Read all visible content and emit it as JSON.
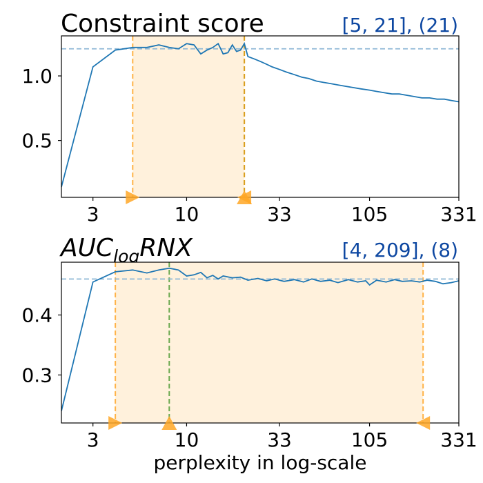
{
  "figure": {
    "xlabel": "perplexity in log-scale"
  },
  "chart_data": [
    {
      "type": "line",
      "title": "Constraint score",
      "range_label": "[5, 21], (21)",
      "x_scale": "log",
      "xlim": [
        2,
        331
      ],
      "ylim": [
        0.06,
        1.31
      ],
      "x_ticks": [
        3,
        10,
        33,
        105,
        331
      ],
      "x_tick_labels": [
        "3",
        "10",
        "33",
        "105",
        "331"
      ],
      "y_ticks": [
        0.5,
        1.0
      ],
      "y_tick_labels": [
        "0.5",
        "1.0"
      ],
      "reference_line_y": 1.21,
      "highlight_range": [
        5,
        21
      ],
      "best_x": 21,
      "colors": {
        "line": "#1f77b4",
        "band": "#fff1dc",
        "band_edge": "#ffb347",
        "best_line": "#d9a020",
        "marker": "#ffa726",
        "reference": "#8fb8d6",
        "range_label": "#0d47a1"
      },
      "series": [
        {
          "x": [
            2,
            3,
            4,
            5,
            6,
            7,
            8,
            9,
            10,
            11,
            12,
            13,
            14,
            15,
            16,
            17,
            18,
            19,
            20,
            21,
            22,
            24,
            26,
            28,
            30,
            33,
            36,
            40,
            44,
            48,
            53,
            58,
            64,
            70,
            77,
            85,
            94,
            105,
            115,
            127,
            140,
            154,
            170,
            187,
            206,
            227,
            250,
            275,
            300,
            331
          ],
          "y": [
            0.14,
            1.07,
            1.2,
            1.22,
            1.22,
            1.24,
            1.22,
            1.21,
            1.25,
            1.24,
            1.17,
            1.2,
            1.22,
            1.25,
            1.17,
            1.18,
            1.24,
            1.19,
            1.2,
            1.25,
            1.15,
            1.13,
            1.11,
            1.09,
            1.07,
            1.05,
            1.03,
            1.01,
            0.99,
            0.98,
            0.96,
            0.95,
            0.94,
            0.93,
            0.92,
            0.91,
            0.9,
            0.89,
            0.88,
            0.87,
            0.86,
            0.86,
            0.85,
            0.84,
            0.83,
            0.83,
            0.82,
            0.82,
            0.81,
            0.8
          ]
        }
      ]
    },
    {
      "type": "line",
      "title": "AUC",
      "title_subscript": "log",
      "title_suffix": "RNX",
      "range_label": "[4, 209], (8)",
      "x_scale": "log",
      "xlim": [
        2,
        331
      ],
      "ylim": [
        0.22,
        0.488
      ],
      "x_ticks": [
        3,
        10,
        33,
        105,
        331
      ],
      "x_tick_labels": [
        "3",
        "10",
        "33",
        "105",
        "331"
      ],
      "y_ticks": [
        0.3,
        0.4
      ],
      "y_tick_labels": [
        "0.3",
        "0.4"
      ],
      "reference_line_y": 0.46,
      "highlight_range": [
        4,
        209
      ],
      "best_x": 8,
      "colors": {
        "line": "#1f77b4",
        "band": "#fff1dc",
        "band_edge": "#ffb347",
        "best_line": "#6aa84f",
        "marker": "#ffa726",
        "reference": "#8fb8d6",
        "range_label": "#0d47a1"
      },
      "series": [
        {
          "x": [
            2,
            3,
            4,
            5,
            6,
            7,
            8,
            9,
            10,
            11,
            12,
            13,
            14,
            15,
            16,
            18,
            20,
            22,
            25,
            28,
            31,
            35,
            40,
            45,
            50,
            56,
            63,
            70,
            80,
            90,
            100,
            105,
            115,
            130,
            145,
            160,
            180,
            200,
            220,
            245,
            270,
            300,
            331
          ],
          "y": [
            0.24,
            0.455,
            0.472,
            0.475,
            0.47,
            0.475,
            0.478,
            0.475,
            0.465,
            0.467,
            0.471,
            0.462,
            0.466,
            0.46,
            0.465,
            0.462,
            0.463,
            0.458,
            0.461,
            0.457,
            0.46,
            0.456,
            0.459,
            0.455,
            0.46,
            0.456,
            0.458,
            0.454,
            0.459,
            0.455,
            0.457,
            0.45,
            0.458,
            0.455,
            0.459,
            0.456,
            0.457,
            0.455,
            0.458,
            0.456,
            0.452,
            0.454,
            0.457
          ]
        }
      ]
    }
  ]
}
